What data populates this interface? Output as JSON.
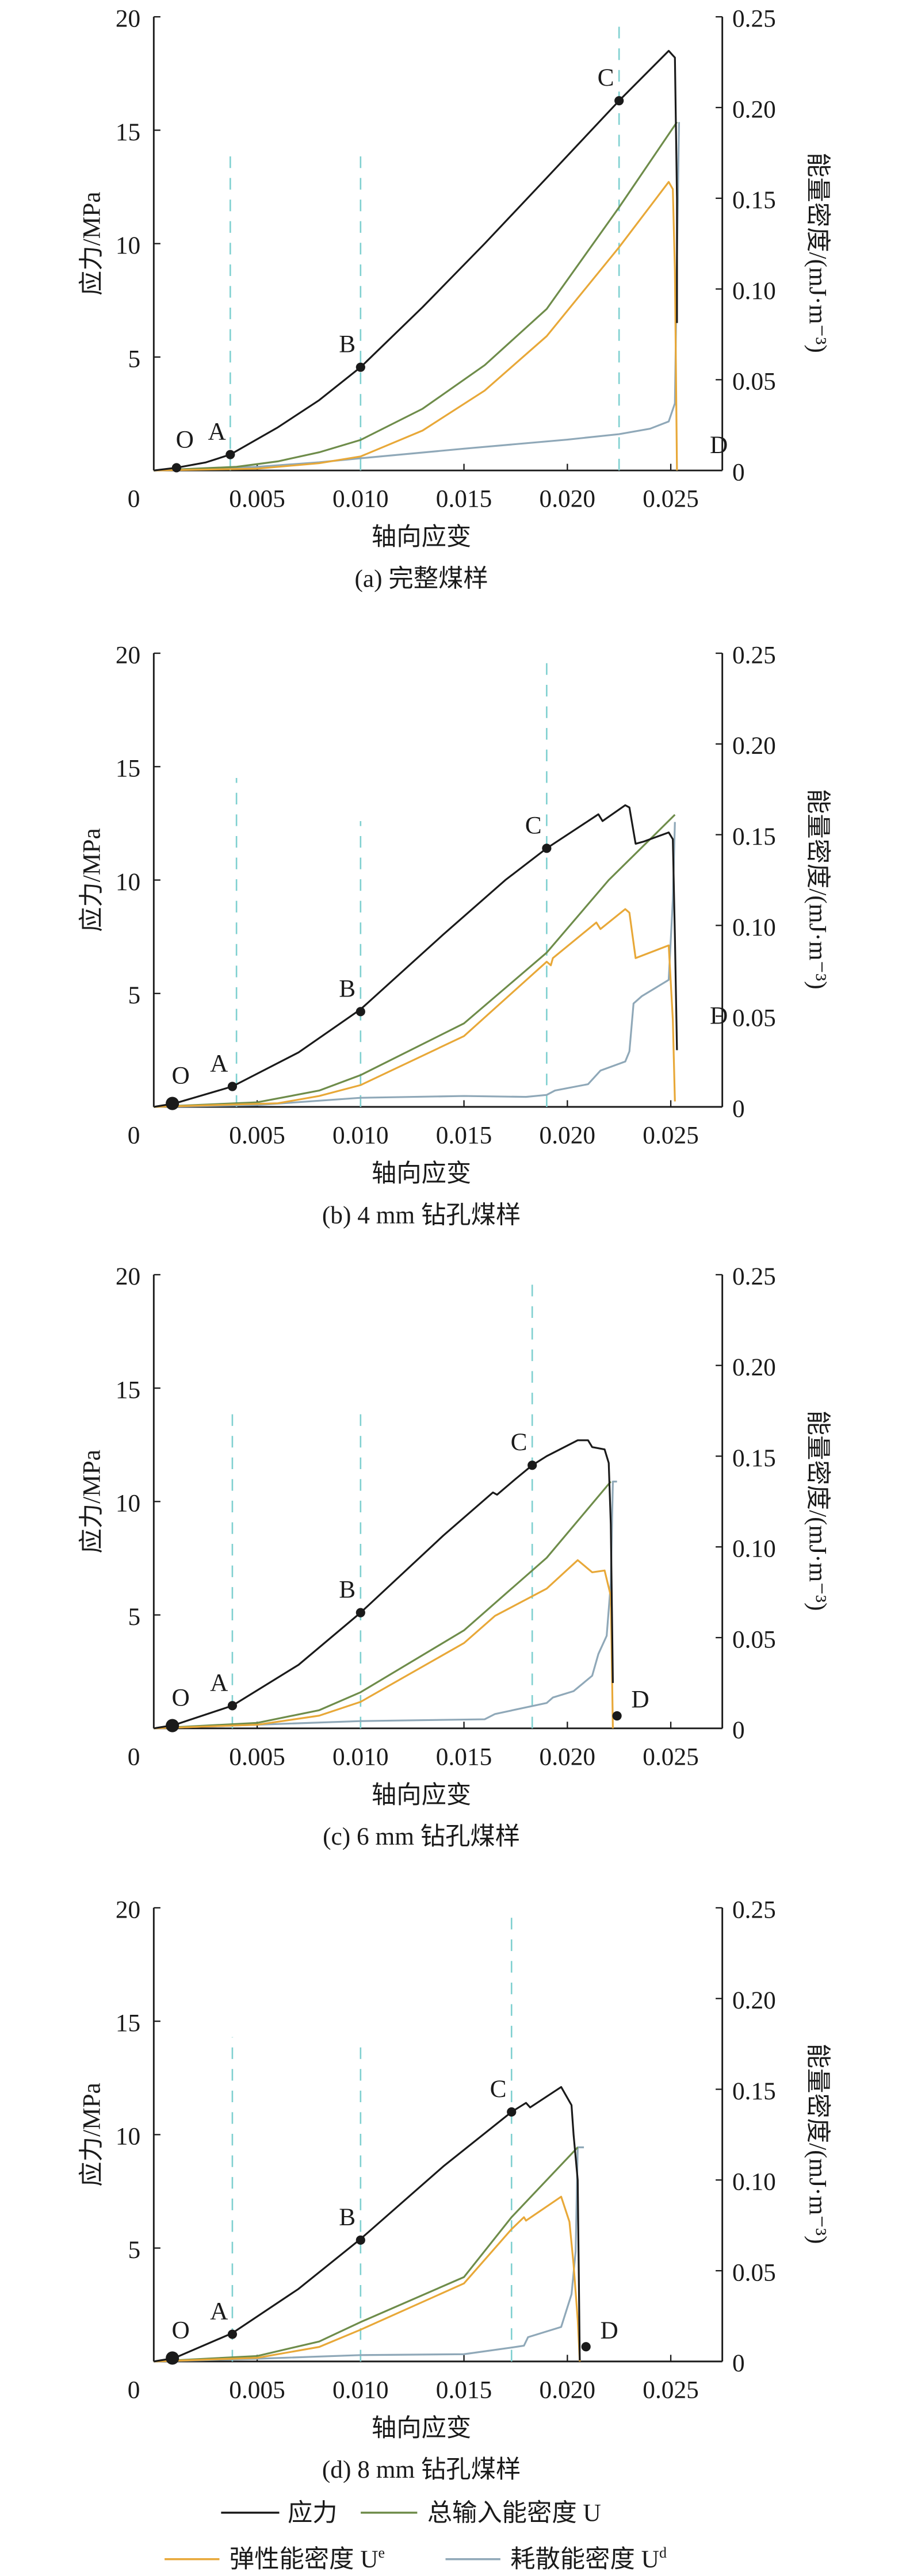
{
  "colors": {
    "stress": "#1a1a1a",
    "total": "#6e8c4a",
    "elastic": "#e8a838",
    "dissipated": "#8fa8b8",
    "guide": "#7fd0d0"
  },
  "legend": {
    "stress": "应力",
    "total": "总输入能密度 U",
    "elastic_base": "弹性能密度 U",
    "elastic_sup": "e",
    "dissipated_base": "耗散能密度 U",
    "dissipated_sup": "d"
  },
  "chart_data": [
    {
      "type": "line",
      "title": "(a) 完整煤样",
      "xlabel": "轴向应变",
      "ylabel": "应力/MPa",
      "ylabel_right": "能量密度/(mJ·m⁻³)",
      "xlim": [
        0,
        0.0273
      ],
      "ylim": [
        0,
        20
      ],
      "ylim_right": [
        0,
        0.25
      ],
      "xticks": [
        "0",
        "0.005",
        "0.010",
        "0.015",
        "0.020",
        "0.025"
      ],
      "yticks": [
        "0",
        "5",
        "10",
        "15",
        "20"
      ],
      "yticks_right": [
        "0",
        "0.05",
        "0.10",
        "0.15",
        "0.20",
        "0.25"
      ],
      "stress": [
        [
          0,
          0
        ],
        [
          0.0011,
          0.12
        ],
        [
          0.0025,
          0.35
        ],
        [
          0.0037,
          0.7
        ],
        [
          0.006,
          1.9
        ],
        [
          0.008,
          3.1
        ],
        [
          0.01,
          4.55
        ],
        [
          0.013,
          7.2
        ],
        [
          0.016,
          10.0
        ],
        [
          0.019,
          12.9
        ],
        [
          0.0225,
          16.3
        ],
        [
          0.0249,
          18.5
        ],
        [
          0.0251,
          18.3
        ],
        [
          0.0252,
          18.2
        ],
        [
          0.0253,
          12.0
        ],
        [
          0.0253,
          6.5
        ]
      ],
      "total_energy": [
        [
          0,
          0
        ],
        [
          0.004,
          0.002
        ],
        [
          0.006,
          0.005
        ],
        [
          0.008,
          0.01
        ],
        [
          0.01,
          0.0168
        ],
        [
          0.013,
          0.034
        ],
        [
          0.016,
          0.058
        ],
        [
          0.019,
          0.089
        ],
        [
          0.0225,
          0.145
        ],
        [
          0.0253,
          0.192
        ]
      ],
      "elastic_energy": [
        [
          0,
          0
        ],
        [
          0.005,
          0.001
        ],
        [
          0.008,
          0.004
        ],
        [
          0.01,
          0.0077
        ],
        [
          0.013,
          0.022
        ],
        [
          0.016,
          0.044
        ],
        [
          0.019,
          0.074
        ],
        [
          0.0225,
          0.123
        ],
        [
          0.0249,
          0.159
        ],
        [
          0.0251,
          0.155
        ],
        [
          0.0252,
          0.11
        ],
        [
          0.0253,
          0
        ]
      ],
      "dissipated_energy": [
        [
          0,
          0
        ],
        [
          0.005,
          0.002
        ],
        [
          0.008,
          0.0045
        ],
        [
          0.01,
          0.0067
        ],
        [
          0.015,
          0.012
        ],
        [
          0.02,
          0.017
        ],
        [
          0.0225,
          0.02
        ],
        [
          0.024,
          0.023
        ],
        [
          0.0249,
          0.027
        ],
        [
          0.0252,
          0.037
        ],
        [
          0.0253,
          0.117
        ],
        [
          0.0254,
          0.192
        ]
      ],
      "points": [
        {
          "label": "O",
          "x": 0.0011,
          "y": 0.12
        },
        {
          "label": "A",
          "x": 0.0037,
          "y": 0.7
        },
        {
          "label": "B",
          "x": 0.01,
          "y": 4.55
        },
        {
          "label": "C",
          "x": 0.0225,
          "y": 16.3
        },
        {
          "label": "D",
          "x": 0.0262,
          "y": 0.4,
          "dot": false
        }
      ],
      "guides": [
        {
          "x": 0.0037,
          "top": 14
        },
        {
          "x": 0.01,
          "top": 13.9
        },
        {
          "x": 0.0225,
          "top": 20
        }
      ]
    },
    {
      "type": "line",
      "title": "(b) 4 mm 钻孔煤样",
      "xlabel": "轴向应变",
      "ylabel": "应力/MPa",
      "ylabel_right": "能量密度/(mJ·m⁻³)",
      "xlim": [
        0,
        0.0273
      ],
      "ylim": [
        0,
        20
      ],
      "ylim_right": [
        0,
        0.25
      ],
      "xticks": [
        "0",
        "0.005",
        "0.010",
        "0.015",
        "0.020",
        "0.025"
      ],
      "yticks": [
        "0",
        "5",
        "10",
        "15",
        "20"
      ],
      "yticks_right": [
        "0",
        "0.05",
        "0.10",
        "0.15",
        "0.20",
        "0.25"
      ],
      "stress": [
        [
          0,
          0
        ],
        [
          0.001,
          0.15
        ],
        [
          0.0038,
          0.9
        ],
        [
          0.007,
          2.4
        ],
        [
          0.01,
          4.3
        ],
        [
          0.014,
          7.6
        ],
        [
          0.017,
          10.0
        ],
        [
          0.019,
          11.4
        ],
        [
          0.0205,
          12.3
        ],
        [
          0.0215,
          12.9
        ],
        [
          0.0217,
          12.6
        ],
        [
          0.0228,
          13.3
        ],
        [
          0.023,
          13.2
        ],
        [
          0.0233,
          11.6
        ],
        [
          0.0237,
          11.7
        ],
        [
          0.0249,
          12.1
        ],
        [
          0.0251,
          11.8
        ],
        [
          0.0252,
          7.5
        ],
        [
          0.0253,
          2.5
        ]
      ],
      "total_energy": [
        [
          0,
          0
        ],
        [
          0.005,
          0.0025
        ],
        [
          0.008,
          0.009
        ],
        [
          0.01,
          0.0175
        ],
        [
          0.015,
          0.046
        ],
        [
          0.019,
          0.085
        ],
        [
          0.022,
          0.125
        ],
        [
          0.0252,
          0.161
        ]
      ],
      "elastic_energy": [
        [
          0,
          0
        ],
        [
          0.006,
          0.002
        ],
        [
          0.008,
          0.006
        ],
        [
          0.01,
          0.012
        ],
        [
          0.015,
          0.039
        ],
        [
          0.019,
          0.08
        ],
        [
          0.0192,
          0.078
        ],
        [
          0.0193,
          0.082
        ],
        [
          0.0214,
          0.1016
        ],
        [
          0.0216,
          0.098
        ],
        [
          0.0228,
          0.109
        ],
        [
          0.023,
          0.107
        ],
        [
          0.0233,
          0.082
        ],
        [
          0.0249,
          0.089
        ],
        [
          0.0251,
          0.048
        ],
        [
          0.0252,
          0.003
        ]
      ],
      "dissipated_energy": [
        [
          0,
          0
        ],
        [
          0.005,
          0.001
        ],
        [
          0.01,
          0.005
        ],
        [
          0.015,
          0.006
        ],
        [
          0.018,
          0.0055
        ],
        [
          0.019,
          0.0066
        ],
        [
          0.0194,
          0.009
        ],
        [
          0.021,
          0.0125
        ],
        [
          0.0216,
          0.02
        ],
        [
          0.0228,
          0.025
        ],
        [
          0.023,
          0.0306
        ],
        [
          0.0232,
          0.057
        ],
        [
          0.0236,
          0.061
        ],
        [
          0.0249,
          0.07
        ],
        [
          0.0251,
          0.114
        ],
        [
          0.0252,
          0.157
        ]
      ],
      "points": [
        {
          "label": "O",
          "x": 0.0009,
          "y": 0.15,
          "big": true
        },
        {
          "label": "A",
          "x": 0.0038,
          "y": 0.9
        },
        {
          "label": "B",
          "x": 0.01,
          "y": 4.2
        },
        {
          "label": "C",
          "x": 0.019,
          "y": 11.4
        },
        {
          "label": "D",
          "x": 0.0262,
          "y": 3.3,
          "dot": false
        }
      ],
      "guides": [
        {
          "x": 0.004,
          "top": 14.5
        },
        {
          "x": 0.01,
          "top": 12.6
        },
        {
          "x": 0.019,
          "top": 20
        }
      ]
    },
    {
      "type": "line",
      "title": "(c) 6 mm 钻孔煤样",
      "xlabel": "轴向应变",
      "ylabel": "应力/MPa",
      "ylabel_right": "能量密度/(mJ·m⁻³)",
      "xlim": [
        0,
        0.0273
      ],
      "ylim": [
        0,
        20
      ],
      "ylim_right": [
        0,
        0.25
      ],
      "xticks": [
        "0",
        "0.005",
        "0.010",
        "0.015",
        "0.020",
        "0.025"
      ],
      "yticks": [
        "0",
        "5",
        "10",
        "15",
        "20"
      ],
      "yticks_right": [
        "0",
        "0.05",
        "0.10",
        "0.15",
        "0.20",
        "0.25"
      ],
      "stress": [
        [
          0,
          0
        ],
        [
          0.001,
          0.15
        ],
        [
          0.0038,
          1.0
        ],
        [
          0.007,
          2.8
        ],
        [
          0.01,
          5.1
        ],
        [
          0.014,
          8.5
        ],
        [
          0.0164,
          10.4
        ],
        [
          0.0166,
          10.3
        ],
        [
          0.0175,
          11.0
        ],
        [
          0.0183,
          11.6
        ],
        [
          0.019,
          12.0
        ],
        [
          0.0205,
          12.7
        ],
        [
          0.021,
          12.7
        ],
        [
          0.0212,
          12.4
        ],
        [
          0.0218,
          12.3
        ],
        [
          0.022,
          11.7
        ],
        [
          0.0221,
          9.0
        ],
        [
          0.0222,
          2.0
        ]
      ],
      "total_energy": [
        [
          0,
          0
        ],
        [
          0.005,
          0.003
        ],
        [
          0.008,
          0.01
        ],
        [
          0.01,
          0.0199
        ],
        [
          0.015,
          0.054
        ],
        [
          0.019,
          0.094
        ],
        [
          0.0221,
          0.136
        ]
      ],
      "elastic_energy": [
        [
          0,
          0
        ],
        [
          0.005,
          0.002
        ],
        [
          0.008,
          0.007
        ],
        [
          0.01,
          0.0146
        ],
        [
          0.015,
          0.047
        ],
        [
          0.0165,
          0.062
        ],
        [
          0.019,
          0.077
        ],
        [
          0.0205,
          0.0927
        ],
        [
          0.0212,
          0.086
        ],
        [
          0.0218,
          0.087
        ],
        [
          0.0221,
          0.073
        ],
        [
          0.0222,
          0
        ]
      ],
      "dissipated_energy": [
        [
          0,
          0
        ],
        [
          0.005,
          0.002
        ],
        [
          0.01,
          0.004
        ],
        [
          0.016,
          0.005
        ],
        [
          0.0165,
          0.0079
        ],
        [
          0.019,
          0.014
        ],
        [
          0.0193,
          0.017
        ],
        [
          0.0203,
          0.0205
        ],
        [
          0.0212,
          0.029
        ],
        [
          0.0215,
          0.041
        ],
        [
          0.0219,
          0.051
        ],
        [
          0.0221,
          0.08
        ],
        [
          0.0222,
          0.136
        ],
        [
          0.0224,
          0.136
        ]
      ],
      "points": [
        {
          "label": "O",
          "x": 0.0009,
          "y": 0.12,
          "big": true
        },
        {
          "label": "A",
          "x": 0.0038,
          "y": 1.0
        },
        {
          "label": "B",
          "x": 0.01,
          "y": 5.1
        },
        {
          "label": "C",
          "x": 0.0183,
          "y": 11.6
        },
        {
          "label": "D",
          "x": 0.0224,
          "y": 0.55
        }
      ],
      "guides": [
        {
          "x": 0.0038,
          "top": 14.2
        },
        {
          "x": 0.01,
          "top": 14.1
        },
        {
          "x": 0.0183,
          "top": 19.8
        }
      ]
    },
    {
      "type": "line",
      "title": "(d) 8 mm 钻孔煤样",
      "xlabel": "轴向应变",
      "ylabel": "应力/MPa",
      "ylabel_right": "能量密度/(mJ·m⁻³)",
      "xlim": [
        0,
        0.0273
      ],
      "ylim": [
        0,
        20
      ],
      "ylim_right": [
        0,
        0.25
      ],
      "xticks": [
        "0",
        "0.005",
        "0.010",
        "0.015",
        "0.020",
        "0.025"
      ],
      "yticks": [
        "0",
        "5",
        "10",
        "15",
        "20"
      ],
      "yticks_right": [
        "0",
        "0.05",
        "0.10",
        "0.15",
        "0.20",
        "0.25"
      ],
      "stress": [
        [
          0,
          0
        ],
        [
          0.001,
          0.15
        ],
        [
          0.0038,
          1.25
        ],
        [
          0.007,
          3.2
        ],
        [
          0.01,
          5.4
        ],
        [
          0.014,
          8.6
        ],
        [
          0.0173,
          11.0
        ],
        [
          0.018,
          11.4
        ],
        [
          0.0182,
          11.2
        ],
        [
          0.0197,
          12.1
        ],
        [
          0.0202,
          11.3
        ],
        [
          0.0203,
          10.0
        ],
        [
          0.0205,
          8.0
        ],
        [
          0.0206,
          0.05
        ]
      ],
      "total_energy": [
        [
          0,
          0
        ],
        [
          0.005,
          0.003
        ],
        [
          0.008,
          0.011
        ],
        [
          0.01,
          0.0217
        ],
        [
          0.015,
          0.0465
        ],
        [
          0.0173,
          0.0795
        ],
        [
          0.0205,
          0.118
        ]
      ],
      "elastic_energy": [
        [
          0,
          0
        ],
        [
          0.005,
          0.002
        ],
        [
          0.008,
          0.008
        ],
        [
          0.01,
          0.0175
        ],
        [
          0.015,
          0.043
        ],
        [
          0.0173,
          0.0729
        ],
        [
          0.0179,
          0.0795
        ],
        [
          0.018,
          0.0776
        ],
        [
          0.0197,
          0.0908
        ],
        [
          0.0201,
          0.077
        ],
        [
          0.0203,
          0.0535
        ],
        [
          0.0205,
          0.023
        ],
        [
          0.0206,
          0
        ]
      ],
      "dissipated_energy": [
        [
          0,
          0
        ],
        [
          0.005,
          0.0015
        ],
        [
          0.01,
          0.0035
        ],
        [
          0.015,
          0.004
        ],
        [
          0.0172,
          0.0075
        ],
        [
          0.0179,
          0.0087
        ],
        [
          0.0181,
          0.0134
        ],
        [
          0.0197,
          0.019
        ],
        [
          0.0202,
          0.037
        ],
        [
          0.0204,
          0.0606
        ],
        [
          0.0205,
          0.118
        ],
        [
          0.0208,
          0.118
        ]
      ],
      "points": [
        {
          "label": "O",
          "x": 0.0009,
          "y": 0.15,
          "big": true
        },
        {
          "label": "A",
          "x": 0.0038,
          "y": 1.2
        },
        {
          "label": "B",
          "x": 0.01,
          "y": 5.35
        },
        {
          "label": "C",
          "x": 0.0173,
          "y": 11.0
        },
        {
          "label": "D",
          "x": 0.0209,
          "y": 0.65
        }
      ],
      "guides": [
        {
          "x": 0.0038,
          "top": 14.3
        },
        {
          "x": 0.01,
          "top": 14.1
        },
        {
          "x": 0.0173,
          "top": 20
        }
      ]
    }
  ]
}
